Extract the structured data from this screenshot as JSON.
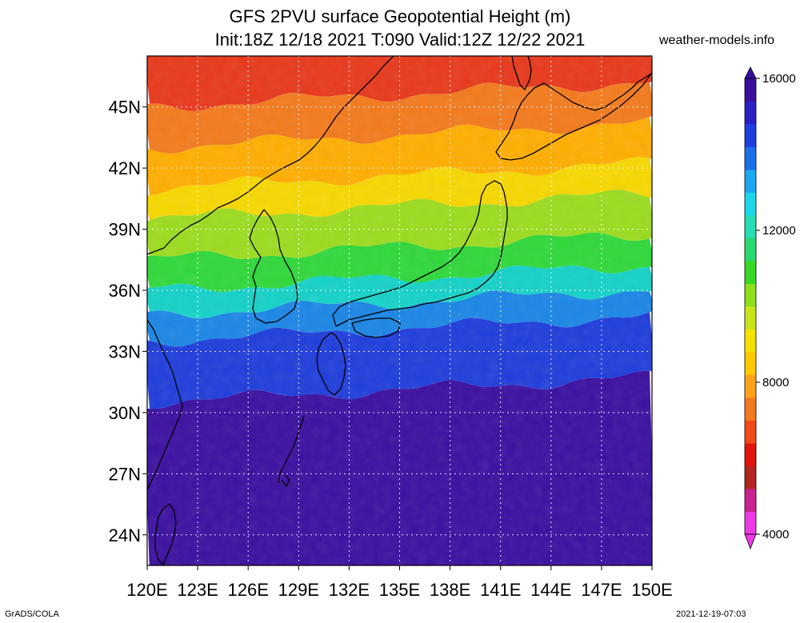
{
  "header": {
    "title_line1": "GFS 2PVU surface Geopotential Height (m)",
    "title_line2": "Init:18Z 12/18 2021 T:090 Valid:12Z 12/22 2021",
    "site": "weather-models.info"
  },
  "footer": {
    "left": "GrADS/COLA",
    "right": "2021-12-19-07:03"
  },
  "map": {
    "type": "filled-contour-map",
    "region": "Japan / East Asia",
    "lon_range": [
      120,
      150
    ],
    "lat_range": [
      22.5,
      47.5
    ],
    "lon_ticks": [
      "120E",
      "123E",
      "126E",
      "129E",
      "132E",
      "135E",
      "138E",
      "141E",
      "144E",
      "147E",
      "150E"
    ],
    "lat_ticks": [
      "24N",
      "27N",
      "30N",
      "33N",
      "36N",
      "39N",
      "42N",
      "45N"
    ],
    "gridlines": true,
    "field_bands": [
      {
        "lat_from": 47.5,
        "lat_to": 45.0,
        "value_m": 6800,
        "color": "#e8381b"
      },
      {
        "lat_from": 45.0,
        "lat_to": 43.0,
        "value_m": 7600,
        "color": "#f37a1c"
      },
      {
        "lat_from": 43.0,
        "lat_to": 41.0,
        "value_m": 8400,
        "color": "#ffae00"
      },
      {
        "lat_from": 41.0,
        "lat_to": 39.5,
        "value_m": 9000,
        "color": "#f7d800"
      },
      {
        "lat_from": 39.5,
        "lat_to": 37.5,
        "value_m": 10200,
        "color": "#9cdc1e"
      },
      {
        "lat_from": 37.5,
        "lat_to": 36.0,
        "value_m": 11000,
        "color": "#2fd83a"
      },
      {
        "lat_from": 36.0,
        "lat_to": 34.8,
        "value_m": 12400,
        "color": "#14d2c8"
      },
      {
        "lat_from": 34.8,
        "lat_to": 33.5,
        "value_m": 13600,
        "color": "#1a86e6"
      },
      {
        "lat_from": 33.5,
        "lat_to": 30.5,
        "value_m": 14600,
        "color": "#1f3ddb"
      },
      {
        "lat_from": 30.5,
        "lat_to": 22.5,
        "value_m": 15600,
        "color": "#3a0fa0"
      }
    ]
  },
  "colorbar": {
    "min": 4000,
    "max": 16000,
    "labels": [
      "16000",
      "12000",
      "8000",
      "4000"
    ],
    "label_values": [
      16000,
      12000,
      8000,
      4000
    ],
    "colors_bottom_to_top": [
      "#ee3ae6",
      "#c8238f",
      "#b32620",
      "#e0140c",
      "#f04a1a",
      "#f37a1c",
      "#ffa21a",
      "#ffc800",
      "#f5e200",
      "#c8e41a",
      "#8ede1c",
      "#35d824",
      "#2ad870",
      "#26ddb4",
      "#1ad6e8",
      "#18a8ef",
      "#1a6ee8",
      "#1f3ee0",
      "#2920c4",
      "#3a0fa0"
    ]
  }
}
